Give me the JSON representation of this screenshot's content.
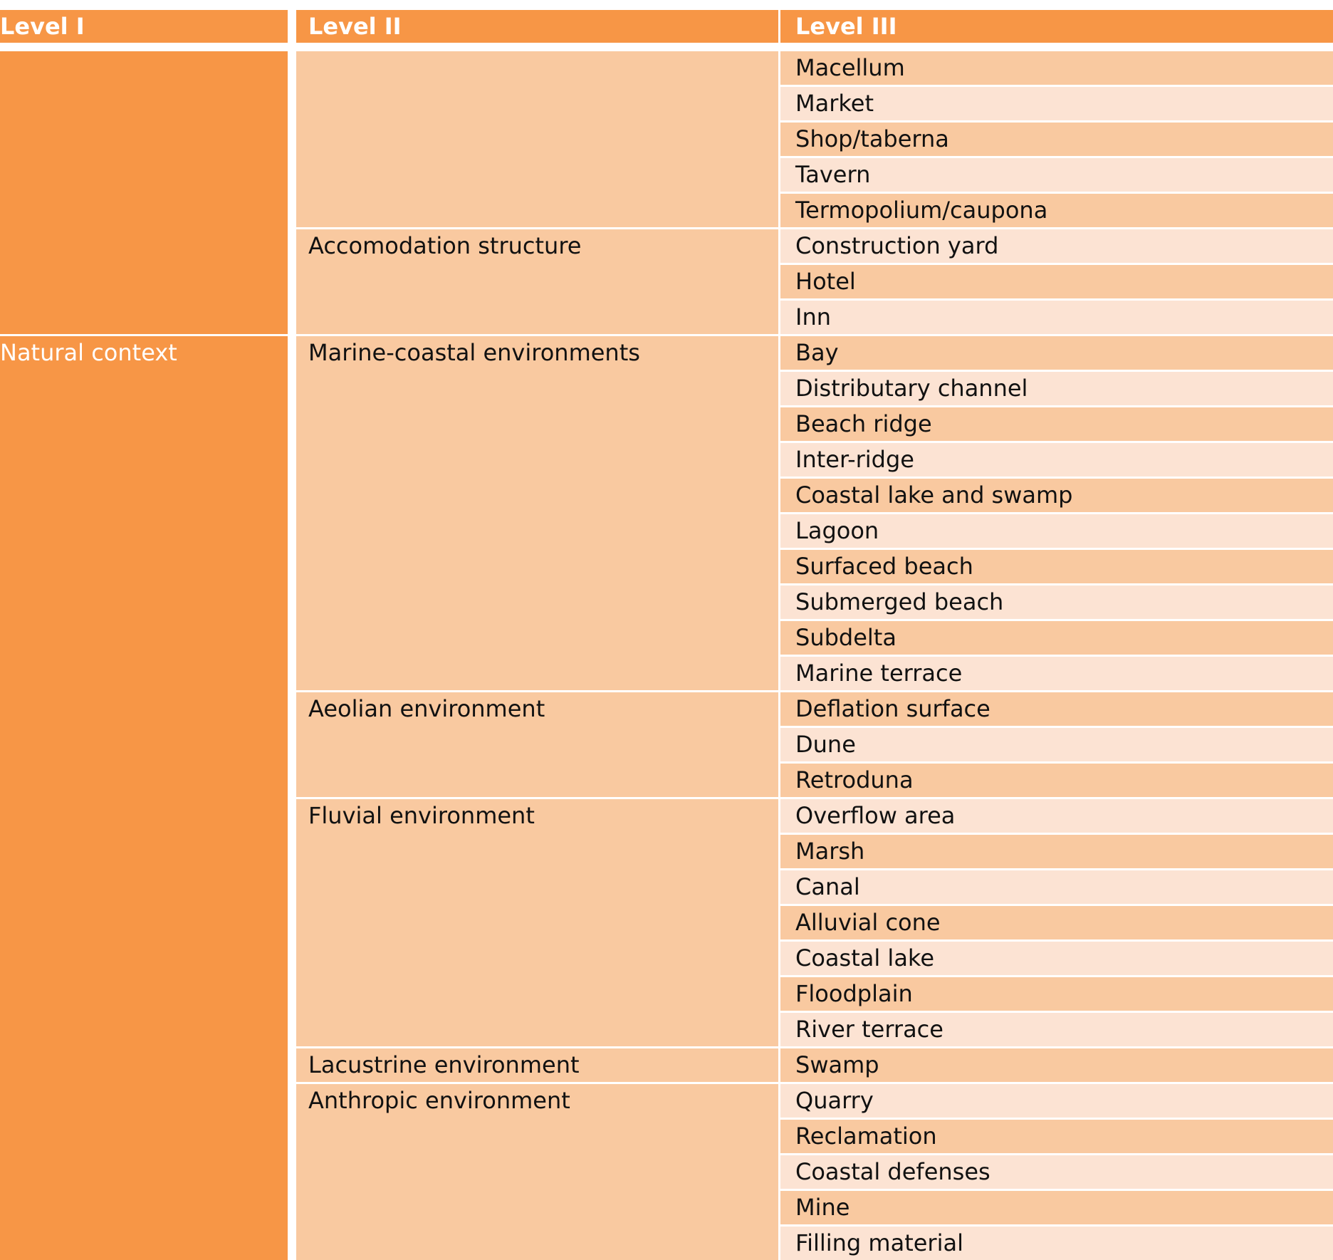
{
  "table": {
    "header": [
      "Level I",
      "Level II",
      "Level III"
    ],
    "groups": [
      {
        "subgroups": [
          {
            "items": [
              "Macellum",
              "Market",
              "Shop/taberna",
              "Tavern",
              "Termopolium/caupona"
            ]
          },
          {
            "label": "Accomodation structure",
            "items": [
              "Construction yard",
              "Hotel",
              "Inn"
            ]
          }
        ]
      },
      {
        "label": "Natural context",
        "subgroups": [
          {
            "label": "Marine-coastal environments",
            "items": [
              "Bay",
              "Distributary channel",
              "Beach ridge",
              "Inter-ridge",
              "Coastal lake and swamp",
              "Lagoon",
              "Surfaced beach",
              "Submerged beach",
              "Subdelta",
              "Marine terrace"
            ]
          },
          {
            "label": "Aeolian environment",
            "items": [
              "Deflation surface",
              "Dune",
              "Retroduna"
            ]
          },
          {
            "label": "Fluvial environment",
            "items": [
              "Overflow area",
              "Marsh",
              "Canal",
              "Alluvial cone",
              "Coastal lake",
              "Floodplain",
              "River terrace"
            ]
          },
          {
            "label": "Lacustrine environment",
            "items": [
              "Swamp"
            ]
          },
          {
            "label": "Anthropic environment",
            "items": [
              "Quarry",
              "Reclamation",
              "Coastal defenses",
              "Mine",
              "Filling material"
            ]
          }
        ]
      }
    ]
  }
}
